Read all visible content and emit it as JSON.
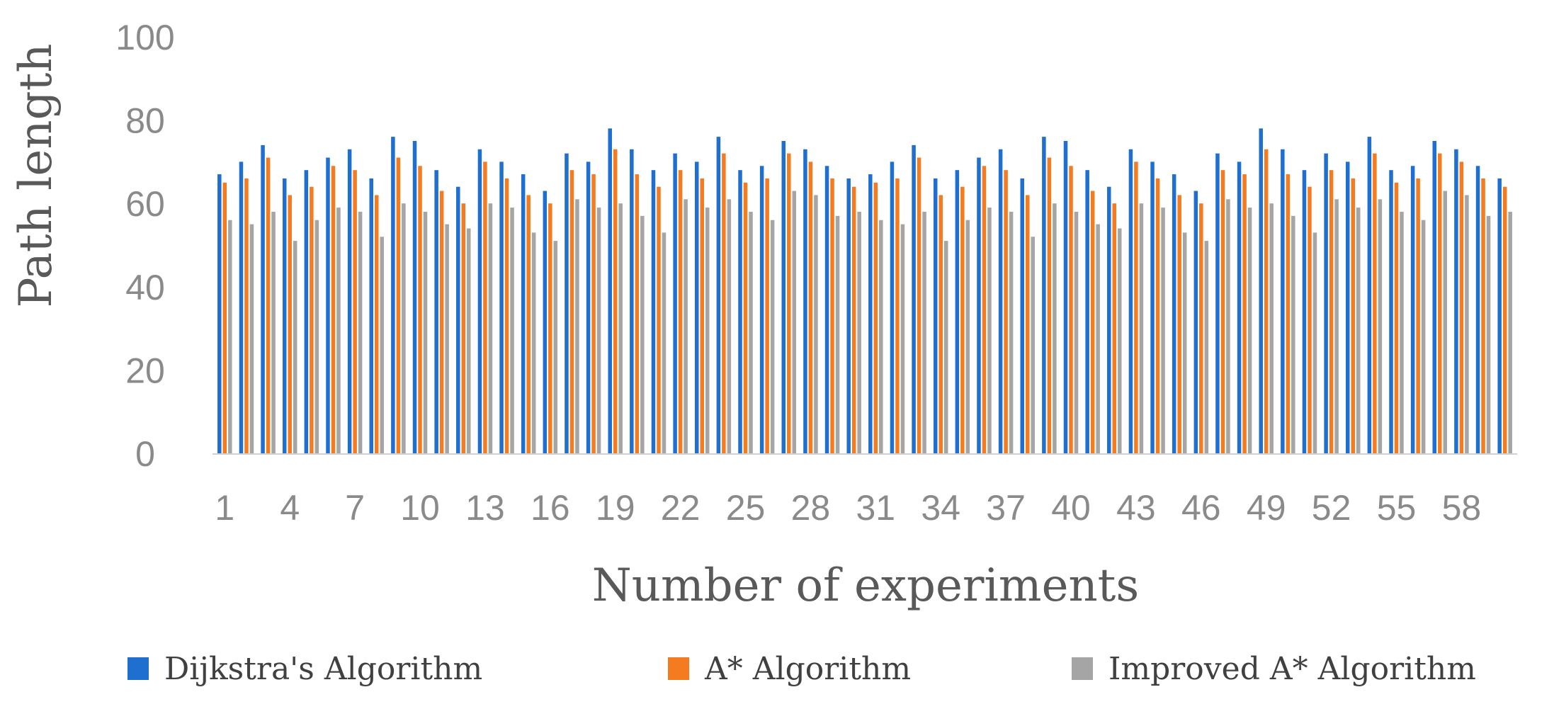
{
  "chart_data": {
    "type": "bar",
    "xlabel": "Number of experiments",
    "ylabel": "Path length",
    "ylim": [
      0,
      100
    ],
    "yticks": [
      0,
      20,
      40,
      60,
      80,
      100
    ],
    "x_tick_labels": [
      "1",
      "4",
      "7",
      "10",
      "13",
      "16",
      "19",
      "22",
      "25",
      "28",
      "31",
      "34",
      "37",
      "40",
      "43",
      "46",
      "49",
      "52",
      "55",
      "58"
    ],
    "categories": [
      1,
      2,
      3,
      4,
      5,
      6,
      7,
      8,
      9,
      10,
      11,
      12,
      13,
      14,
      15,
      16,
      17,
      18,
      19,
      20,
      21,
      22,
      23,
      24,
      25,
      26,
      27,
      28,
      29,
      30,
      31,
      32,
      33,
      34,
      35,
      36,
      37,
      38,
      39,
      40,
      41,
      42,
      43,
      44,
      45,
      46,
      47,
      48,
      49,
      50,
      51,
      52,
      53,
      54,
      55,
      56,
      57,
      58,
      59,
      60
    ],
    "grid": false,
    "legend_position": "bottom",
    "series": [
      {
        "name": "Dijkstra's Algorithm",
        "color": "#1f6fd1",
        "values": [
          67,
          70,
          74,
          66,
          68,
          71,
          73,
          66,
          76,
          75,
          68,
          64,
          73,
          70,
          67,
          63,
          72,
          70,
          78,
          73,
          68,
          72,
          70,
          76,
          68,
          69,
          75,
          73,
          69,
          66,
          67,
          70,
          74,
          66,
          68,
          71,
          73,
          66,
          76,
          75,
          68,
          64,
          73,
          70,
          67,
          63,
          72,
          70,
          78,
          73,
          68,
          72,
          70,
          76,
          68,
          69,
          75,
          73,
          69,
          66
        ]
      },
      {
        "name": "A* Algorithm",
        "color": "#f47b20",
        "values": [
          65,
          66,
          71,
          62,
          64,
          69,
          68,
          62,
          71,
          69,
          63,
          60,
          70,
          66,
          62,
          60,
          68,
          67,
          73,
          67,
          64,
          68,
          66,
          72,
          65,
          66,
          72,
          70,
          66,
          64,
          65,
          66,
          71,
          62,
          64,
          69,
          68,
          62,
          71,
          69,
          63,
          60,
          70,
          66,
          62,
          60,
          68,
          67,
          73,
          67,
          64,
          68,
          66,
          72,
          65,
          66,
          72,
          70,
          66,
          64
        ]
      },
      {
        "name": "Improved A* Algorithm",
        "color": "#a5a5a5",
        "values": [
          56,
          55,
          58,
          51,
          56,
          59,
          58,
          52,
          60,
          58,
          55,
          54,
          60,
          59,
          53,
          51,
          61,
          59,
          60,
          57,
          53,
          61,
          59,
          61,
          58,
          56,
          63,
          62,
          57,
          58,
          56,
          55,
          58,
          51,
          56,
          59,
          58,
          52,
          60,
          58,
          55,
          54,
          60,
          59,
          53,
          51,
          61,
          59,
          60,
          57,
          53,
          61,
          59,
          61,
          58,
          56,
          63,
          62,
          57,
          58
        ]
      }
    ]
  }
}
